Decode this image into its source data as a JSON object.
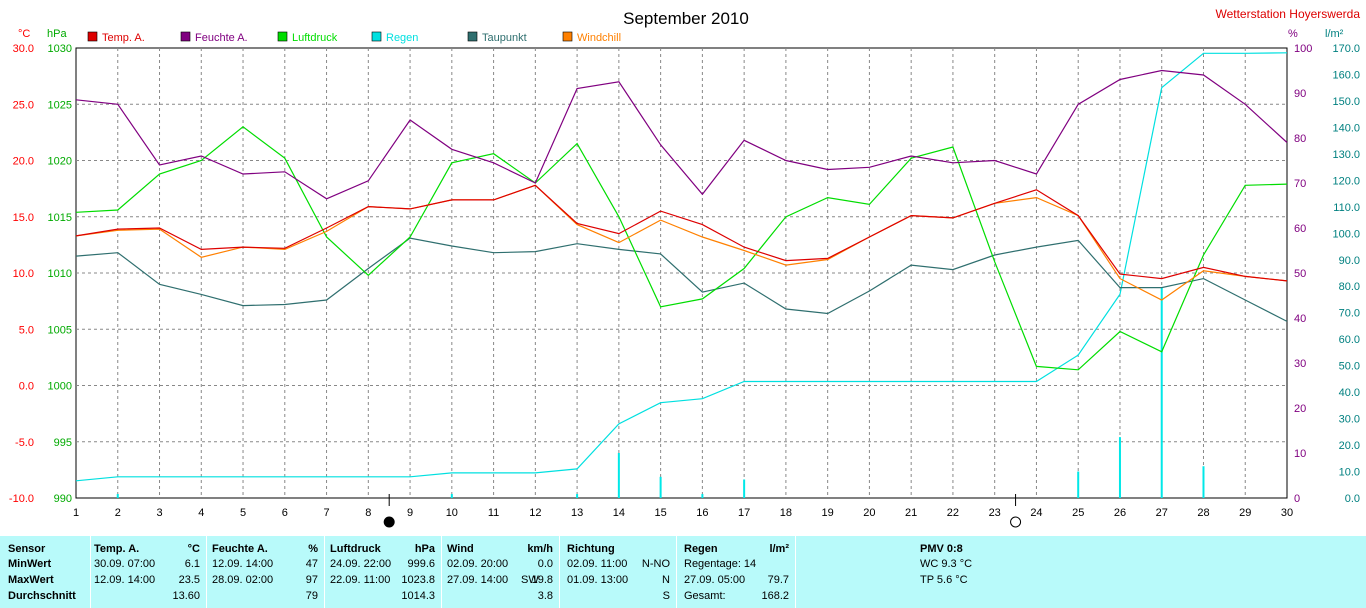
{
  "chart_data": {
    "type": "line",
    "title": "September 2010",
    "station": "Wetterstation Hoyerswerda",
    "x": [
      1,
      2,
      3,
      4,
      5,
      6,
      7,
      8,
      9,
      10,
      11,
      12,
      13,
      14,
      15,
      16,
      17,
      18,
      19,
      20,
      21,
      22,
      23,
      24,
      25,
      26,
      27,
      28,
      29,
      30
    ],
    "axes": {
      "left_temp": {
        "unit": "°C",
        "min": -10,
        "max": 30,
        "ticks": [
          "30.0",
          "25.0",
          "20.0",
          "15.0",
          "10.0",
          "5.0",
          "0.0",
          "-5.0",
          "-10.0"
        ],
        "color": "#ff0000"
      },
      "left_pressure": {
        "unit": "hPa",
        "min": 990,
        "max": 1030,
        "ticks": [
          "1030",
          "1025",
          "1020",
          "1015",
          "1010",
          "1005",
          "1000",
          "995",
          "990"
        ],
        "color": "#00aa00"
      },
      "right_humidity": {
        "unit": "%",
        "min": 0,
        "max": 100,
        "ticks": [
          "100",
          "90",
          "80",
          "70",
          "60",
          "50",
          "40",
          "30",
          "20",
          "10",
          "0"
        ],
        "color": "#800080"
      },
      "right_rain": {
        "unit": "l/m²",
        "min": 0,
        "max": 170,
        "ticks": [
          "170.0",
          "160.0",
          "150.0",
          "140.0",
          "130.0",
          "120.0",
          "110.0",
          "100.0",
          "90.0",
          "80.0",
          "70.0",
          "60.0",
          "50.0",
          "40.0",
          "30.0",
          "20.0",
          "10.0",
          "0.0"
        ],
        "color": "#008080"
      }
    },
    "series": [
      {
        "name": "Temp. A.",
        "color": "#dd0000",
        "axis": "left_temp",
        "values": [
          13.3,
          13.9,
          14.0,
          12.1,
          12.3,
          12.2,
          14.0,
          15.9,
          15.7,
          16.5,
          16.5,
          17.8,
          14.4,
          13.5,
          15.5,
          14.3,
          12.3,
          11.1,
          11.3,
          13.2,
          15.1,
          14.9,
          16.2,
          17.4,
          15.1,
          9.9,
          9.5,
          10.5,
          9.7,
          9.3
        ]
      },
      {
        "name": "Feuchte A.",
        "color": "#800080",
        "axis": "right_humidity",
        "values": [
          88.5,
          87.5,
          74,
          76,
          72,
          72.5,
          66.5,
          70.5,
          84,
          77.5,
          74.5,
          70,
          91,
          92.5,
          78.5,
          67.5,
          79.5,
          75,
          73,
          73.5,
          76,
          74.5,
          75,
          72,
          87.5,
          93,
          95,
          94,
          87.5,
          79
        ]
      },
      {
        "name": "Luftdruck",
        "color": "#00dd00",
        "axis": "left_pressure",
        "values": [
          1015.4,
          1015.6,
          1018.8,
          1020.0,
          1023.0,
          1020.2,
          1013.2,
          1009.8,
          1013.2,
          1019.8,
          1020.6,
          1018.0,
          1021.5,
          1015.0,
          1007.0,
          1007.7,
          1010.4,
          1015.0,
          1016.7,
          1016.1,
          1020.2,
          1021.2,
          1011.0,
          1001.7,
          1001.4,
          1004.8,
          1003.0,
          1011.6,
          1017.8,
          1017.9
        ]
      },
      {
        "name": "Regen",
        "color": "#00e0e0",
        "axis": "right_rain",
        "values": [
          6.5,
          8.0,
          8.0,
          8.0,
          8.0,
          8.0,
          8.0,
          8.0,
          8.0,
          9.5,
          9.5,
          9.5,
          11.0,
          28.0,
          36.0,
          37.5,
          44.0,
          44.0,
          44.0,
          44.0,
          44.0,
          44.0,
          44.0,
          44.0,
          54.0,
          77.0,
          155.0,
          168.0,
          168.0,
          168.2
        ]
      },
      {
        "name": "Taupunkt",
        "color": "#2f6f6f",
        "axis": "left_temp",
        "values": [
          11.5,
          11.8,
          9.0,
          8.1,
          7.1,
          7.2,
          7.6,
          10.4,
          13.1,
          12.4,
          11.8,
          11.9,
          12.6,
          12.1,
          11.7,
          8.3,
          9.1,
          6.8,
          6.4,
          8.4,
          10.7,
          10.3,
          11.6,
          12.3,
          12.9,
          8.7,
          8.7,
          9.5,
          7.6,
          5.7
        ]
      },
      {
        "name": "Windchill",
        "color": "#ff8000",
        "axis": "left_temp",
        "values": [
          13.3,
          13.8,
          13.9,
          11.4,
          12.3,
          12.1,
          13.7,
          15.9,
          15.7,
          16.5,
          16.5,
          17.8,
          14.3,
          12.7,
          14.7,
          13.2,
          12.0,
          10.7,
          11.2,
          13.2,
          15.1,
          14.9,
          16.2,
          16.7,
          15.1,
          9.5,
          7.6,
          10.2,
          9.7,
          9.3
        ]
      }
    ],
    "daily_rain_bars": [
      {
        "day": 2,
        "value": 1.5
      },
      {
        "day": 10,
        "value": 1.5
      },
      {
        "day": 13,
        "value": 1.5
      },
      {
        "day": 14,
        "value": 17.0
      },
      {
        "day": 15,
        "value": 8.0
      },
      {
        "day": 16,
        "value": 1.5
      },
      {
        "day": 17,
        "value": 7.0
      },
      {
        "day": 25,
        "value": 10.0
      },
      {
        "day": 26,
        "value": 23.0
      },
      {
        "day": 27,
        "value": 79.7
      },
      {
        "day": 28,
        "value": 12.0
      }
    ],
    "moon_phases": [
      {
        "day": 8.5,
        "phase": "new-moon"
      },
      {
        "day": 23.5,
        "phase": "full-moon"
      }
    ],
    "grid": true,
    "legend_position": "top"
  },
  "stats": {
    "sensor": {
      "header": "Sensor",
      "rows": [
        "MinWert",
        "MaxWert",
        "Durchschnitt"
      ]
    },
    "temp": {
      "header": "Temp. A.",
      "unit": "°C",
      "min": {
        "time": "30.09.  07:00",
        "value": "6.1"
      },
      "max": {
        "time": "12.09.  14:00",
        "value": "23.5"
      },
      "avg": "13.60"
    },
    "humidity": {
      "header": "Feuchte A.",
      "unit": "%",
      "min": {
        "time": "12.09.  14:00",
        "value": "47"
      },
      "max": {
        "time": "28.09.  02:00",
        "value": "97"
      },
      "avg": "79"
    },
    "pressure": {
      "header": "Luftdruck",
      "unit": "hPa",
      "min": {
        "time": "24.09.  22:00",
        "value": "999.6"
      },
      "max": {
        "time": "22.09.  11:00",
        "value": "1023.8"
      },
      "avg": "1014.3"
    },
    "wind": {
      "header": "Wind",
      "unit": "km/h",
      "min": {
        "time": "02.09.  20:00",
        "value": "0.0"
      },
      "max": {
        "time": "27.09.  14:00",
        "dir": "SW",
        "value": "19.8"
      },
      "avg": "3.8"
    },
    "direction": {
      "header": "Richtung",
      "min": {
        "time": "02.09.  11:00",
        "value": "N-NO"
      },
      "max": {
        "time": "01.09.  13:00",
        "value": "N"
      },
      "avg": "S"
    },
    "rain": {
      "header": "Regen",
      "unit": "l/m²",
      "row1": "Regentage: 14",
      "row2_time": "27.09.  05:00",
      "row2_value": "79.7",
      "row3_label": "Gesamt:",
      "row3_value": "168.2"
    },
    "pmv": {
      "header": "PMV 0:8",
      "wc": "WC 9.3 °C",
      "tp": "TP 5.6 °C"
    }
  }
}
